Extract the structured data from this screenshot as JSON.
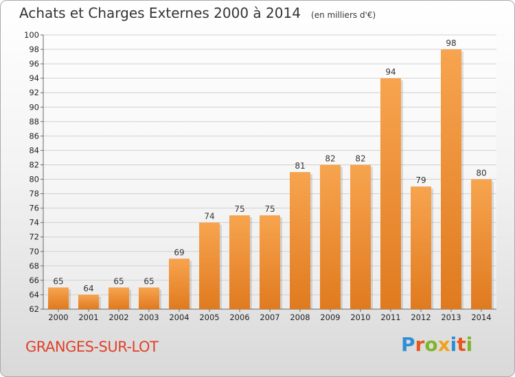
{
  "title": "Achats et Charges Externes 2000 à 2014",
  "unit": "(en milliers d'€)",
  "commune": "GRANGES-SUR-LOT",
  "logo": [
    "P",
    "r",
    "o",
    "x",
    "i",
    "t",
    "i"
  ],
  "colors": {
    "bar_top": "#f7a44f",
    "bar_bottom": "#e07a1f",
    "grid": "#d0d0d0",
    "axis": "#666666"
  },
  "chart_data": {
    "type": "bar",
    "title": "Achats et Charges Externes 2000 à 2014",
    "subtitle": "(en milliers d'€)",
    "categories": [
      "2000",
      "2001",
      "2002",
      "2003",
      "2004",
      "2005",
      "2006",
      "2007",
      "2008",
      "2009",
      "2010",
      "2011",
      "2012",
      "2013",
      "2014"
    ],
    "values": [
      65,
      64,
      65,
      65,
      69,
      74,
      75,
      75,
      81,
      82,
      82,
      94,
      79,
      98,
      80
    ],
    "ylim": [
      62,
      100
    ],
    "yticks": [
      62,
      64,
      66,
      68,
      70,
      72,
      74,
      76,
      78,
      80,
      82,
      84,
      86,
      88,
      90,
      92,
      94,
      96,
      98,
      100
    ],
    "grid": true
  }
}
